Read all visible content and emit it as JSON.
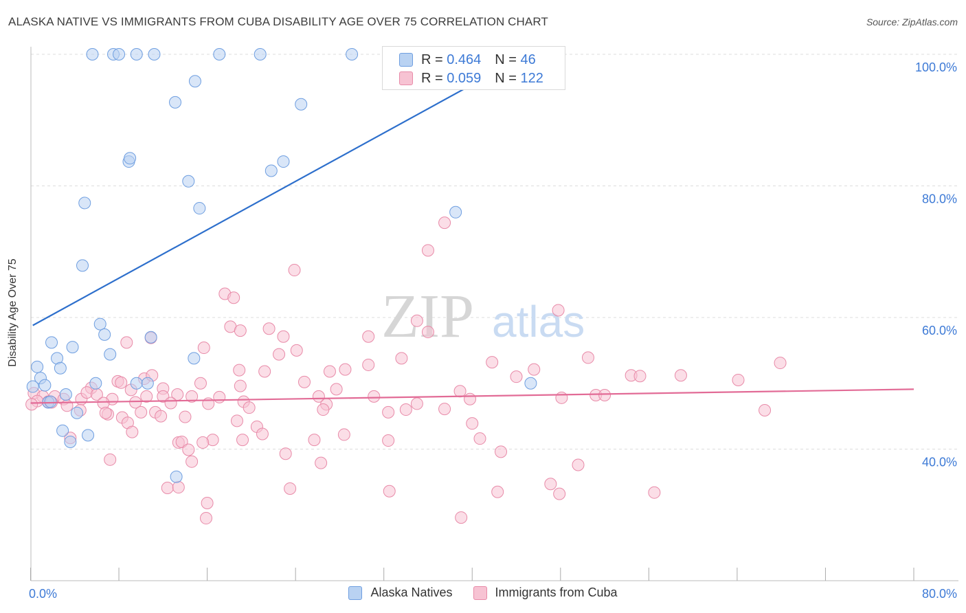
{
  "title": "ALASKA NATIVE VS IMMIGRANTS FROM CUBA DISABILITY AGE OVER 75 CORRELATION CHART",
  "source": "Source: ZipAtlas.com",
  "watermark": {
    "zip": "ZIP",
    "atlas": "atlas"
  },
  "legend": {
    "r_label": "R =",
    "n_label": "N =",
    "series": [
      {
        "r": "0.464",
        "n": "46"
      },
      {
        "r": "0.059",
        "n": "122"
      }
    ]
  },
  "bottom_legend": [
    "Alaska Natives",
    "Immigrants from Cuba"
  ],
  "colors": {
    "blue_fill": "#b9d2f2",
    "blue_stroke": "#6e9ee0",
    "blue_line": "#2d6fcc",
    "pink_fill": "#f7c3d3",
    "pink_stroke": "#e88aa8",
    "pink_line": "#e26b96",
    "tick_label": "#3d7ad6",
    "grid": "#dcdcdc"
  },
  "chart_data": {
    "type": "scatter",
    "xlabel": "",
    "ylabel": "Disability Age Over 75",
    "xlim": [
      0,
      80
    ],
    "ylim": [
      20,
      100
    ],
    "x_tick_labels": [
      {
        "value": 0,
        "label": "0.0%"
      },
      {
        "value": 80,
        "label": "80.0%"
      }
    ],
    "y_tick_labels": [
      {
        "value": 40,
        "label": "40.0%"
      },
      {
        "value": 60,
        "label": "60.0%"
      },
      {
        "value": 80,
        "label": "80.0%"
      },
      {
        "value": 100,
        "label": "100.0%"
      }
    ],
    "grid": true,
    "legend_position": "top-center",
    "series": [
      {
        "name": "Alaska Natives",
        "trend": [
          [
            0.2,
            58.8
          ],
          [
            45.0,
            100.0
          ]
        ],
        "points": [
          [
            5.6,
            100
          ],
          [
            7.5,
            100
          ],
          [
            8.0,
            100
          ],
          [
            9.6,
            100
          ],
          [
            11.2,
            100
          ],
          [
            17.1,
            100
          ],
          [
            20.8,
            100
          ],
          [
            29.1,
            100
          ],
          [
            41.7,
            100
          ],
          [
            14.9,
            95.9
          ],
          [
            13.1,
            92.7
          ],
          [
            24.5,
            92.4
          ],
          [
            8.9,
            83.7
          ],
          [
            9.0,
            84.2
          ],
          [
            21.8,
            82.3
          ],
          [
            22.9,
            83.7
          ],
          [
            14.3,
            80.7
          ],
          [
            4.9,
            77.4
          ],
          [
            15.3,
            76.6
          ],
          [
            38.5,
            76.0
          ],
          [
            4.7,
            67.9
          ],
          [
            6.3,
            59.0
          ],
          [
            6.7,
            57.4
          ],
          [
            10.9,
            57.0
          ],
          [
            1.9,
            56.2
          ],
          [
            3.8,
            55.5
          ],
          [
            7.2,
            54.4
          ],
          [
            2.4,
            53.8
          ],
          [
            14.8,
            53.8
          ],
          [
            0.6,
            52.5
          ],
          [
            2.7,
            52.3
          ],
          [
            0.9,
            50.8
          ],
          [
            5.9,
            50.0
          ],
          [
            1.3,
            49.7
          ],
          [
            9.6,
            50.0
          ],
          [
            10.6,
            50.0
          ],
          [
            45.3,
            50.0
          ],
          [
            3.2,
            48.3
          ],
          [
            1.6,
            47.1
          ],
          [
            1.8,
            47.2
          ],
          [
            0.2,
            49.5
          ],
          [
            4.2,
            45.5
          ],
          [
            2.9,
            42.8
          ],
          [
            5.2,
            42.1
          ],
          [
            3.6,
            41.1
          ],
          [
            13.2,
            35.8
          ]
        ]
      },
      {
        "name": "Immigrants from Cuba",
        "trend": [
          [
            0.0,
            47.0
          ],
          [
            80.0,
            49.1
          ]
        ],
        "points": [
          [
            37.5,
            74.4
          ],
          [
            36.0,
            70.2
          ],
          [
            23.9,
            67.2
          ],
          [
            17.6,
            63.6
          ],
          [
            18.4,
            63.0
          ],
          [
            47.8,
            61.1
          ],
          [
            35.0,
            59.5
          ],
          [
            18.1,
            58.6
          ],
          [
            19.0,
            58.0
          ],
          [
            21.6,
            58.3
          ],
          [
            36.0,
            57.8
          ],
          [
            30.6,
            57.1
          ],
          [
            22.9,
            57.1
          ],
          [
            8.7,
            56.2
          ],
          [
            10.9,
            56.9
          ],
          [
            15.7,
            55.4
          ],
          [
            24.1,
            55.0
          ],
          [
            22.5,
            54.4
          ],
          [
            33.6,
            53.8
          ],
          [
            50.5,
            53.9
          ],
          [
            41.8,
            53.2
          ],
          [
            67.9,
            53.1
          ],
          [
            18.9,
            52.0
          ],
          [
            21.2,
            51.8
          ],
          [
            27.1,
            51.8
          ],
          [
            28.5,
            52.1
          ],
          [
            30.6,
            52.8
          ],
          [
            45.6,
            52.1
          ],
          [
            54.4,
            51.2
          ],
          [
            55.2,
            51.1
          ],
          [
            58.9,
            51.2
          ],
          [
            64.1,
            50.5
          ],
          [
            44.0,
            51.0
          ],
          [
            24.8,
            50.2
          ],
          [
            10.3,
            50.7
          ],
          [
            11.0,
            51.2
          ],
          [
            7.9,
            50.3
          ],
          [
            8.2,
            50.1
          ],
          [
            15.4,
            50.0
          ],
          [
            19.0,
            49.6
          ],
          [
            5.5,
            49.3
          ],
          [
            9.1,
            49.0
          ],
          [
            12.0,
            49.2
          ],
          [
            27.7,
            49.1
          ],
          [
            38.9,
            48.8
          ],
          [
            51.2,
            48.2
          ],
          [
            52.0,
            48.2
          ],
          [
            0.3,
            48.5
          ],
          [
            1.1,
            48.0
          ],
          [
            2.2,
            48.0
          ],
          [
            3.0,
            47.6
          ],
          [
            4.6,
            47.6
          ],
          [
            5.1,
            48.6
          ],
          [
            6.0,
            48.3
          ],
          [
            7.4,
            47.6
          ],
          [
            10.5,
            48.0
          ],
          [
            12.0,
            48.0
          ],
          [
            13.3,
            48.3
          ],
          [
            14.6,
            48.0
          ],
          [
            17.1,
            47.9
          ],
          [
            26.1,
            48.0
          ],
          [
            31.1,
            48.0
          ],
          [
            39.8,
            47.6
          ],
          [
            48.1,
            47.8
          ],
          [
            1.6,
            47.2
          ],
          [
            0.6,
            47.3
          ],
          [
            6.6,
            47.0
          ],
          [
            9.5,
            47.1
          ],
          [
            12.7,
            47.0
          ],
          [
            16.1,
            46.9
          ],
          [
            19.3,
            47.2
          ],
          [
            26.8,
            46.8
          ],
          [
            34.0,
            46.0
          ],
          [
            35.0,
            46.9
          ],
          [
            0.1,
            46.8
          ],
          [
            1.9,
            47.1
          ],
          [
            3.3,
            46.6
          ],
          [
            4.5,
            45.9
          ],
          [
            7.0,
            45.3
          ],
          [
            10.0,
            45.6
          ],
          [
            11.3,
            45.6
          ],
          [
            19.8,
            46.3
          ],
          [
            32.4,
            45.6
          ],
          [
            26.5,
            46.0
          ],
          [
            37.5,
            46.1
          ],
          [
            40.0,
            43.9
          ],
          [
            8.3,
            44.8
          ],
          [
            8.8,
            44.0
          ],
          [
            11.8,
            45.0
          ],
          [
            6.8,
            45.5
          ],
          [
            14.0,
            44.9
          ],
          [
            20.5,
            43.4
          ],
          [
            18.7,
            44.3
          ],
          [
            9.2,
            42.6
          ],
          [
            16.5,
            41.4
          ],
          [
            19.2,
            41.4
          ],
          [
            21.0,
            42.3
          ],
          [
            25.7,
            41.4
          ],
          [
            28.4,
            42.2
          ],
          [
            32.4,
            41.3
          ],
          [
            40.7,
            41.6
          ],
          [
            13.4,
            41.0
          ],
          [
            13.7,
            41.1
          ],
          [
            15.6,
            41.0
          ],
          [
            3.6,
            41.7
          ],
          [
            14.3,
            39.9
          ],
          [
            42.6,
            39.6
          ],
          [
            23.1,
            39.3
          ],
          [
            14.6,
            38.1
          ],
          [
            7.2,
            38.4
          ],
          [
            26.3,
            37.9
          ],
          [
            49.6,
            37.6
          ],
          [
            47.1,
            34.7
          ],
          [
            12.4,
            34.1
          ],
          [
            13.4,
            34.2
          ],
          [
            23.5,
            34.0
          ],
          [
            32.5,
            33.6
          ],
          [
            42.3,
            33.5
          ],
          [
            47.9,
            33.2
          ],
          [
            56.5,
            33.4
          ],
          [
            16.0,
            31.8
          ],
          [
            15.9,
            29.5
          ],
          [
            39.0,
            29.6
          ],
          [
            66.5,
            45.9
          ]
        ]
      }
    ]
  }
}
